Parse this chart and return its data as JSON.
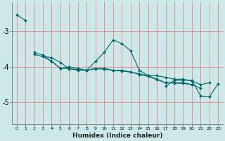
{
  "title": "",
  "xlabel": "Humidex (Indice chaleur)",
  "bg_color": "#cce8e8",
  "grid_color": "#e89090",
  "line_color": "#006868",
  "xlim": [
    -0.5,
    23.5
  ],
  "ylim": [
    -5.6,
    -2.2
  ],
  "yticks": [
    -5,
    -4,
    -3
  ],
  "xticks": [
    0,
    1,
    2,
    3,
    4,
    5,
    6,
    7,
    8,
    9,
    10,
    11,
    12,
    13,
    14,
    15,
    16,
    17,
    18,
    19,
    20,
    21,
    22,
    23
  ],
  "series": [
    [
      -2.55,
      -2.7,
      null,
      null,
      null,
      null,
      null,
      null,
      null,
      null,
      null,
      null,
      null,
      null,
      null,
      null,
      null,
      null,
      null,
      null,
      null,
      null,
      null,
      null
    ],
    [
      null,
      null,
      -3.6,
      -3.68,
      -3.85,
      -4.05,
      -4.0,
      -4.05,
      -4.1,
      -3.85,
      -3.6,
      -3.25,
      -3.35,
      -3.55,
      -4.1,
      -4.25,
      -4.25,
      -4.3,
      -4.35,
      -4.35,
      -4.4,
      -4.5,
      -4.45,
      null
    ],
    [
      null,
      null,
      -3.65,
      -3.72,
      -3.85,
      -4.05,
      -4.05,
      -4.1,
      -4.1,
      -4.05,
      -4.05,
      -4.1,
      -4.1,
      -4.15,
      -4.2,
      -4.25,
      -4.35,
      -4.45,
      -4.45,
      -4.45,
      -4.5,
      null,
      null,
      null
    ],
    [
      null,
      null,
      null,
      -3.7,
      -3.75,
      -3.88,
      -4.06,
      -4.08,
      -4.1,
      -4.06,
      -4.07,
      -4.1,
      -4.12,
      -4.15,
      -4.22,
      -4.27,
      -4.36,
      -4.45,
      -4.46,
      -4.47,
      -4.5,
      -4.6,
      null,
      null
    ],
    [
      null,
      null,
      null,
      null,
      null,
      null,
      null,
      null,
      null,
      null,
      null,
      null,
      null,
      null,
      null,
      null,
      null,
      -4.55,
      -4.38,
      -4.38,
      -4.38,
      -4.82,
      -4.84,
      -4.48
    ]
  ]
}
